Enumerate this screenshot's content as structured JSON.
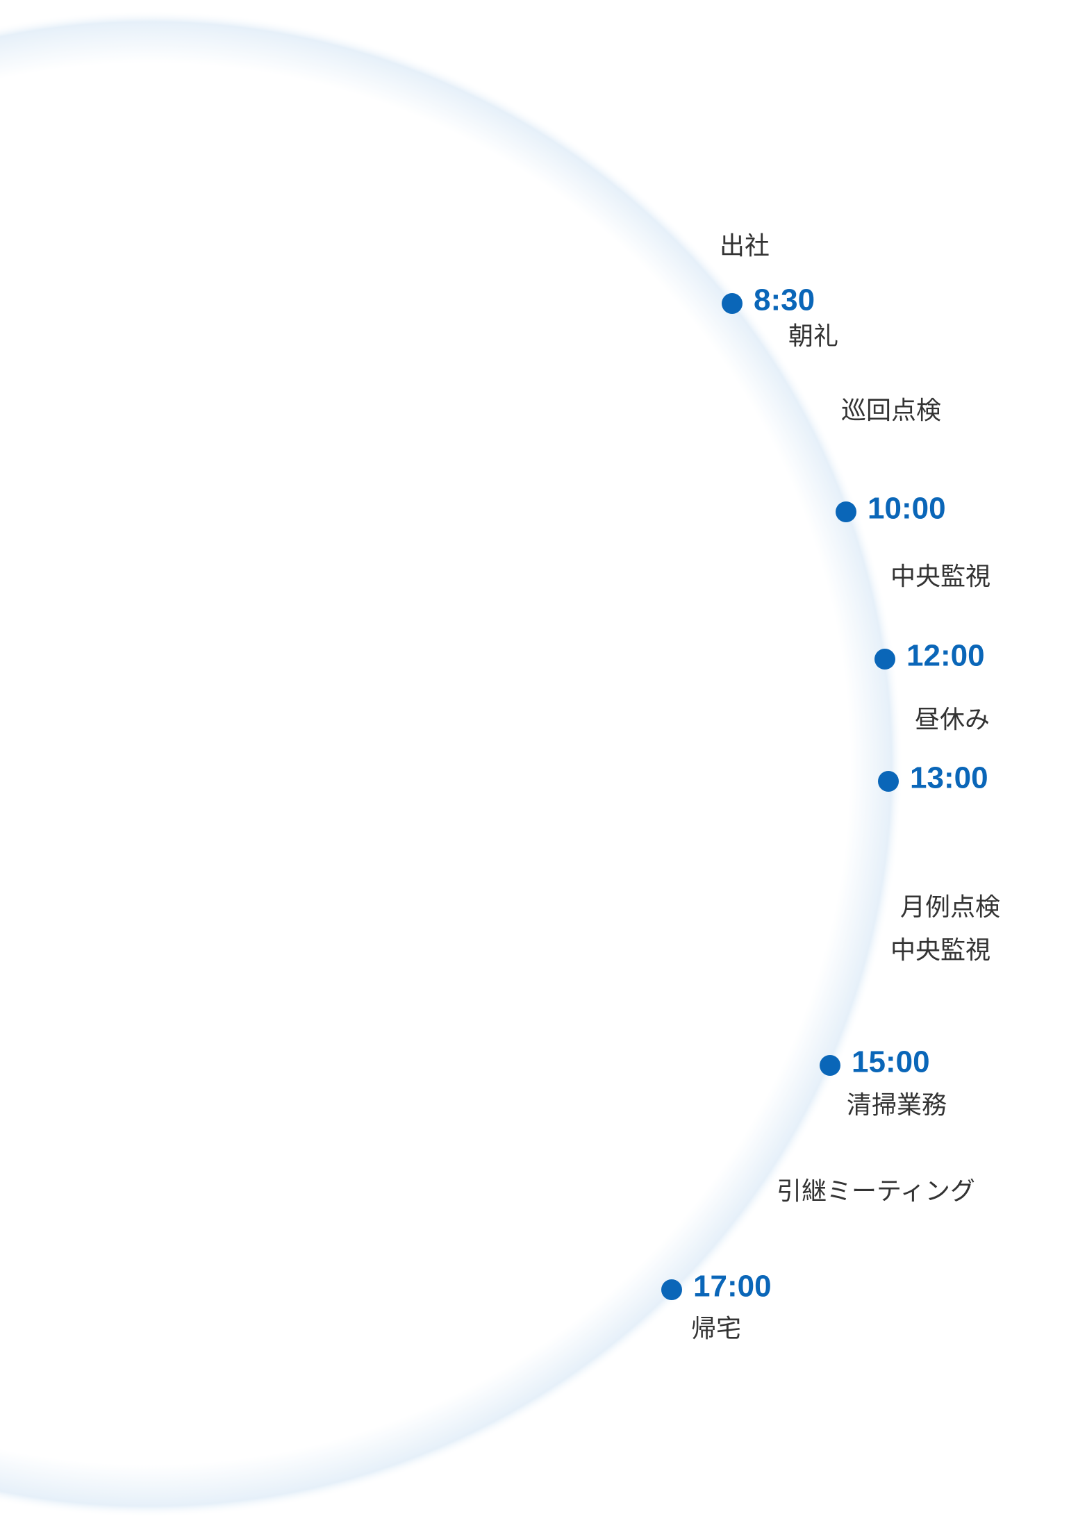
{
  "times": [
    "8:30",
    "10:00",
    "12:00",
    "13:00",
    "15:00",
    "17:00"
  ],
  "labels": [
    "出社",
    "朝礼",
    "巡回点検",
    "中央監視",
    "昼休み",
    "月例点検",
    "中央監視",
    "清掃業務",
    "引継ミーティング",
    "帰宅"
  ]
}
